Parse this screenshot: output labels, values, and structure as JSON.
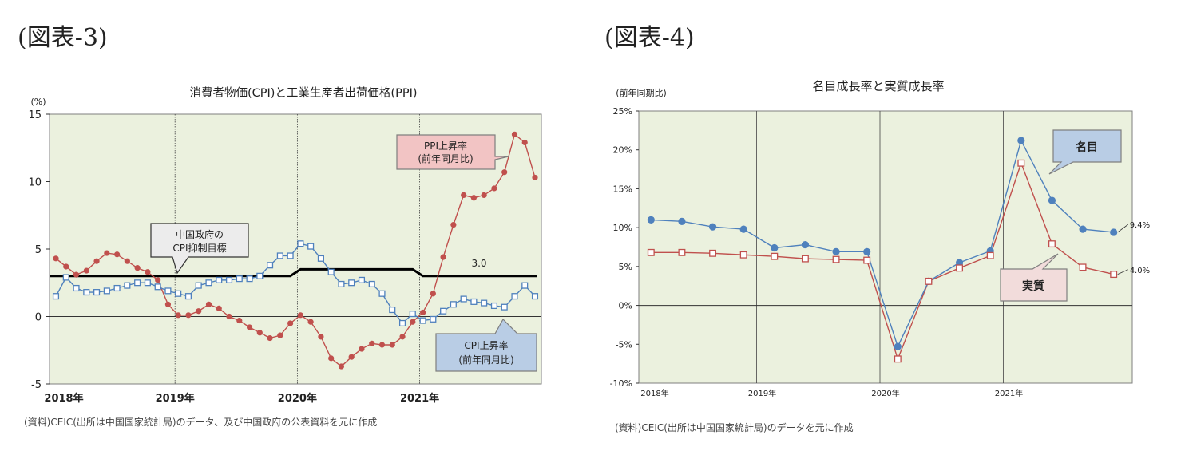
{
  "figures": [
    {
      "label": "(図表-3)",
      "source": "(資料)CEIC(出所は中国国家統計局)のデータ、及び中国政府の公表資料を元に作成"
    },
    {
      "label": "(図表-4)",
      "source": "(資料)CEIC(出所は中国国家統計局)のデータを元に作成"
    }
  ],
  "chart_data": [
    {
      "type": "line",
      "title": "消費者物価(CPI)と工業生産者出荷価格(PPI)",
      "ylabel": "(%)",
      "ylim": [
        -5,
        15
      ],
      "yticks": [
        15,
        10,
        5,
        0,
        -5
      ],
      "xticks": [
        "2018年",
        "2019年",
        "2020年",
        "2021年"
      ],
      "xlim_months": 47,
      "grid": "vertical-year-lines",
      "series": [
        {
          "name": "PPI上昇率(前年同月比)",
          "color": "#c0504d",
          "marker": "filled-circle",
          "values": [
            4.3,
            3.7,
            3.1,
            3.4,
            4.1,
            4.7,
            4.6,
            4.1,
            3.6,
            3.3,
            2.7,
            0.9,
            0.1,
            0.1,
            0.4,
            0.9,
            0.6,
            0.0,
            -0.3,
            -0.8,
            -1.2,
            -1.6,
            -1.4,
            -0.5,
            0.1,
            -0.4,
            -1.5,
            -3.1,
            -3.7,
            -3.0,
            -2.4,
            -2.0,
            -2.1,
            -2.1,
            -1.5,
            -0.4,
            0.3,
            1.7,
            4.4,
            6.8,
            9.0,
            8.8,
            9.0,
            9.5,
            10.7,
            13.5,
            12.9,
            10.3
          ]
        },
        {
          "name": "CPI上昇率(前年同月比)",
          "color": "#4f81bd",
          "marker": "hollow-square",
          "values": [
            1.5,
            2.9,
            2.1,
            1.8,
            1.8,
            1.9,
            2.1,
            2.3,
            2.5,
            2.5,
            2.2,
            1.9,
            1.7,
            1.5,
            2.3,
            2.5,
            2.7,
            2.7,
            2.8,
            2.8,
            3.0,
            3.8,
            4.5,
            4.5,
            5.4,
            5.2,
            4.3,
            3.3,
            2.4,
            2.5,
            2.7,
            2.4,
            1.7,
            0.5,
            -0.5,
            0.2,
            -0.3,
            -0.2,
            0.4,
            0.9,
            1.3,
            1.1,
            1.0,
            0.8,
            0.7,
            1.5,
            2.3,
            1.5
          ]
        },
        {
          "name": "中国政府のCPI抑制目標",
          "color": "#000000",
          "segments": [
            {
              "from": 0,
              "to": 23,
              "value": 3.0
            },
            {
              "from": 24,
              "to": 35,
              "value": 3.5
            },
            {
              "from": 36,
              "to": 47,
              "value": 3.0
            }
          ]
        }
      ],
      "annotations": [
        {
          "text": "PPI上昇率",
          "text2": "(前年同月比)",
          "style": "callout-red"
        },
        {
          "text": "CPI上昇率",
          "text2": "(前年同月比)",
          "style": "callout-blue"
        },
        {
          "text": "中国政府の",
          "text2": "CPI抑制目標",
          "style": "callout-gray"
        },
        {
          "text": "3.0",
          "style": "plain"
        }
      ]
    },
    {
      "type": "line",
      "title": "名目成長率と実質成長率",
      "ylabel": "(前年同期比)",
      "ylim": [
        -10,
        25
      ],
      "yticks": [
        "25%",
        "20%",
        "15%",
        "10%",
        "5%",
        "0%",
        "-5%",
        "-10%"
      ],
      "xticks": [
        "2018年",
        "2019年",
        "2020年",
        "2021年"
      ],
      "grid": "vertical-year-lines",
      "series": [
        {
          "name": "名目",
          "color": "#4f81bd",
          "marker": "filled-circle",
          "values": [
            11.0,
            10.8,
            10.1,
            9.8,
            7.4,
            7.8,
            6.9,
            6.9,
            -5.3,
            3.1,
            5.5,
            7.0,
            21.2,
            13.5,
            9.8,
            9.4
          ]
        },
        {
          "name": "実質",
          "color": "#c0504d",
          "marker": "hollow-square",
          "values": [
            6.8,
            6.8,
            6.7,
            6.5,
            6.3,
            6.0,
            5.9,
            5.8,
            -6.9,
            3.1,
            4.8,
            6.4,
            18.3,
            7.9,
            4.9,
            4.0
          ]
        }
      ],
      "end_labels": [
        "9.4%",
        "4.0%"
      ]
    }
  ]
}
